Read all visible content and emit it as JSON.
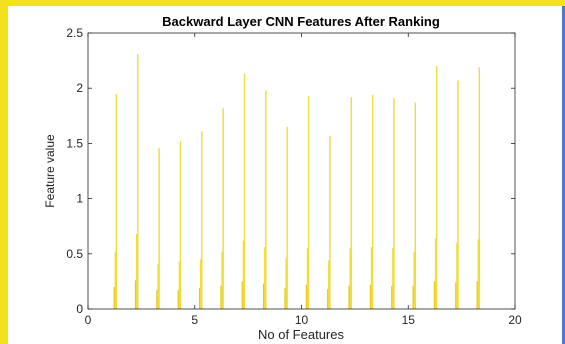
{
  "colors": {
    "bar": "#f0dc3a",
    "bar_dark": "#e6c81e",
    "frame_yellow": "#f5e11a",
    "frame_blue": "#4a7cc7",
    "axis": "#262626"
  },
  "chart_data": {
    "type": "bar",
    "title": "Backward Layer CNN Features After Ranking",
    "xlabel": "No of Features",
    "ylabel": "Feature value",
    "xlim": [
      0,
      20
    ],
    "ylim": [
      0,
      2.5
    ],
    "xticks": [
      0,
      5,
      10,
      15,
      20
    ],
    "yticks": [
      0,
      0.5,
      1,
      1.5,
      2,
      2.5
    ],
    "xtick_labels": [
      "0",
      "5",
      "10",
      "15",
      "20"
    ],
    "ytick_labels": [
      "0",
      "0.5",
      "1",
      "1.5",
      "2",
      "2.5"
    ],
    "grid": false,
    "legend": "none",
    "groups": [
      {
        "x": 1,
        "values": [
          0.2,
          0.52,
          1.95
        ]
      },
      {
        "x": 2,
        "values": [
          0.26,
          0.68,
          2.31
        ]
      },
      {
        "x": 3,
        "values": [
          0.17,
          0.41,
          1.46
        ]
      },
      {
        "x": 4,
        "values": [
          0.17,
          0.43,
          1.52
        ]
      },
      {
        "x": 5,
        "values": [
          0.19,
          0.45,
          1.61
        ]
      },
      {
        "x": 6,
        "values": [
          0.21,
          0.52,
          1.82
        ]
      },
      {
        "x": 7,
        "values": [
          0.25,
          0.62,
          2.13
        ]
      },
      {
        "x": 8,
        "values": [
          0.23,
          0.56,
          1.98
        ]
      },
      {
        "x": 9,
        "values": [
          0.19,
          0.46,
          1.65
        ]
      },
      {
        "x": 10,
        "values": [
          0.22,
          0.55,
          1.93
        ]
      },
      {
        "x": 11,
        "values": [
          0.18,
          0.44,
          1.57
        ]
      },
      {
        "x": 12,
        "values": [
          0.21,
          0.55,
          1.92
        ]
      },
      {
        "x": 13,
        "values": [
          0.22,
          0.56,
          1.94
        ]
      },
      {
        "x": 14,
        "values": [
          0.21,
          0.55,
          1.91
        ]
      },
      {
        "x": 15,
        "values": [
          0.21,
          0.52,
          1.87
        ]
      },
      {
        "x": 16,
        "values": [
          0.25,
          0.64,
          2.2
        ]
      },
      {
        "x": 17,
        "values": [
          0.24,
          0.6,
          2.07
        ]
      },
      {
        "x": 18,
        "values": [
          0.25,
          0.63,
          2.19
        ]
      }
    ]
  }
}
